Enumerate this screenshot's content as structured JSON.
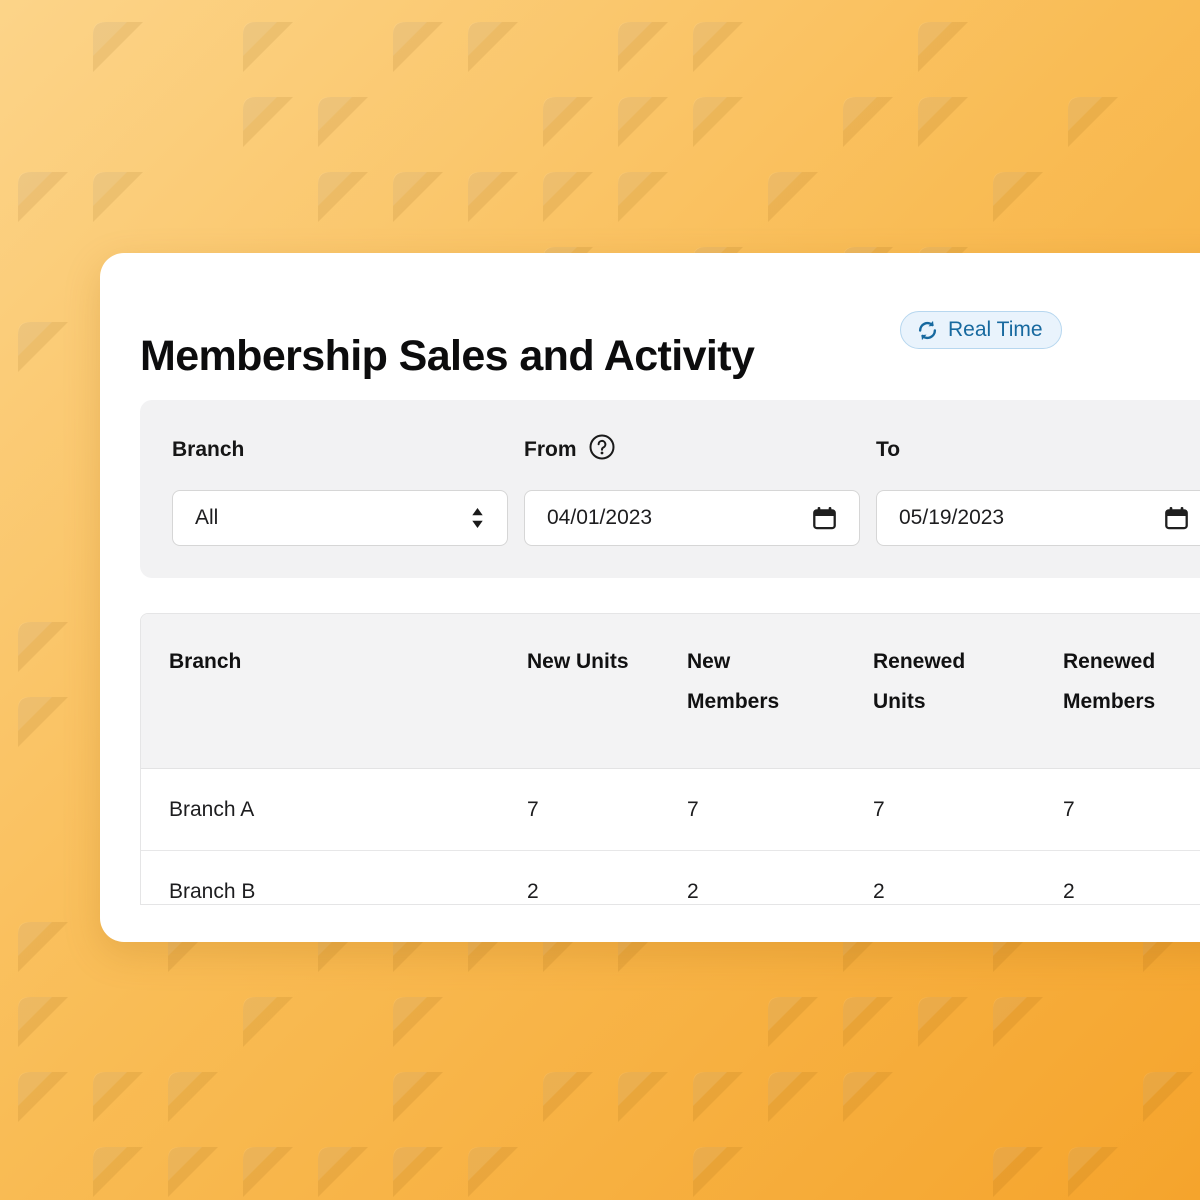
{
  "page": {
    "title": "Membership Sales and Activity"
  },
  "badge": {
    "label": "Real Time",
    "icon": "refresh-icon"
  },
  "filters": {
    "branch": {
      "label": "Branch",
      "value": "All"
    },
    "from": {
      "label": "From",
      "value": "04/01/2023",
      "help_icon": "help-icon"
    },
    "to": {
      "label": "To",
      "value": "05/19/2023"
    }
  },
  "table": {
    "columns": [
      "Branch",
      "New Units",
      "New Members",
      "Renewed Units",
      "Renewed Members"
    ],
    "rows": [
      [
        "Branch A",
        "7",
        "7",
        "7",
        "7"
      ],
      [
        "Branch B",
        "2",
        "2",
        "2",
        "2"
      ]
    ]
  },
  "colors": {
    "accent_blue": "#17699f",
    "badge_bg": "#e9f3fc",
    "badge_border": "#b7d7ef",
    "panel_bg": "#f2f2f3",
    "background_top": "#fcd489",
    "background_bottom": "#f5a42c"
  }
}
